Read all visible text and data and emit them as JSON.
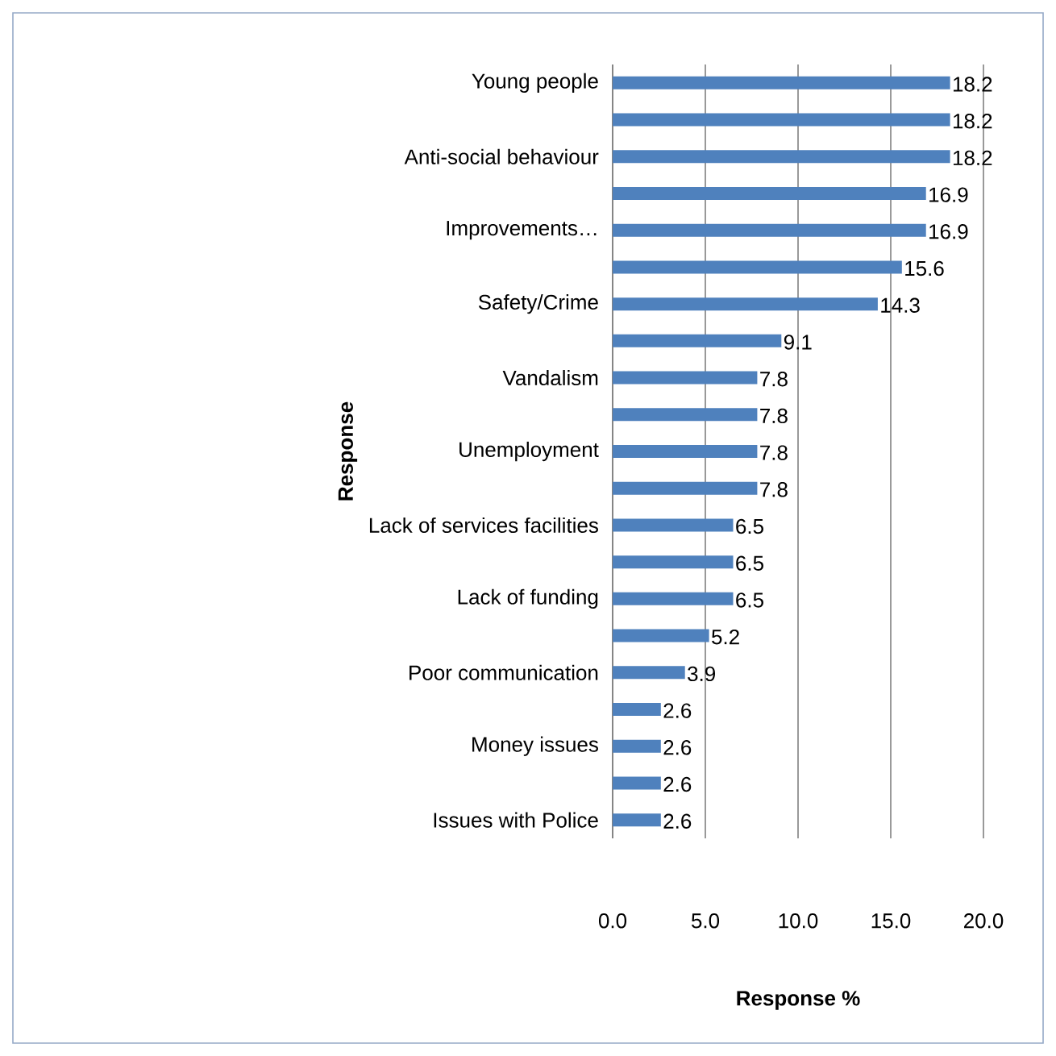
{
  "chart_data": {
    "type": "bar",
    "orientation": "horizontal",
    "xlabel": "Response %",
    "ylabel": "Response",
    "categories": [
      "Young people",
      null,
      "Anti-social behaviour",
      null,
      "Improvements…",
      null,
      "Safety/Crime",
      null,
      "Vandalism",
      null,
      "Unemployment",
      null,
      "Lack of services facilities",
      null,
      "Lack of funding",
      null,
      "Poor communication",
      null,
      "Money issues",
      null,
      "Issues with Police"
    ],
    "values": [
      18.2,
      18.2,
      18.2,
      16.9,
      16.9,
      15.6,
      14.3,
      9.1,
      7.8,
      7.8,
      7.8,
      7.8,
      6.5,
      6.5,
      6.5,
      5.2,
      3.9,
      2.6,
      2.6,
      2.6,
      2.6
    ],
    "color": "#4f81bd",
    "data_labels": true,
    "grid": "x",
    "xlim": [
      0,
      20
    ],
    "xticks": [
      {
        "value": 0,
        "label": "0.0"
      },
      {
        "value": 5,
        "label": "5.0"
      },
      {
        "value": 10,
        "label": "10.0"
      },
      {
        "value": 15,
        "label": "15.0"
      },
      {
        "value": 20,
        "label": "20.0"
      }
    ]
  }
}
